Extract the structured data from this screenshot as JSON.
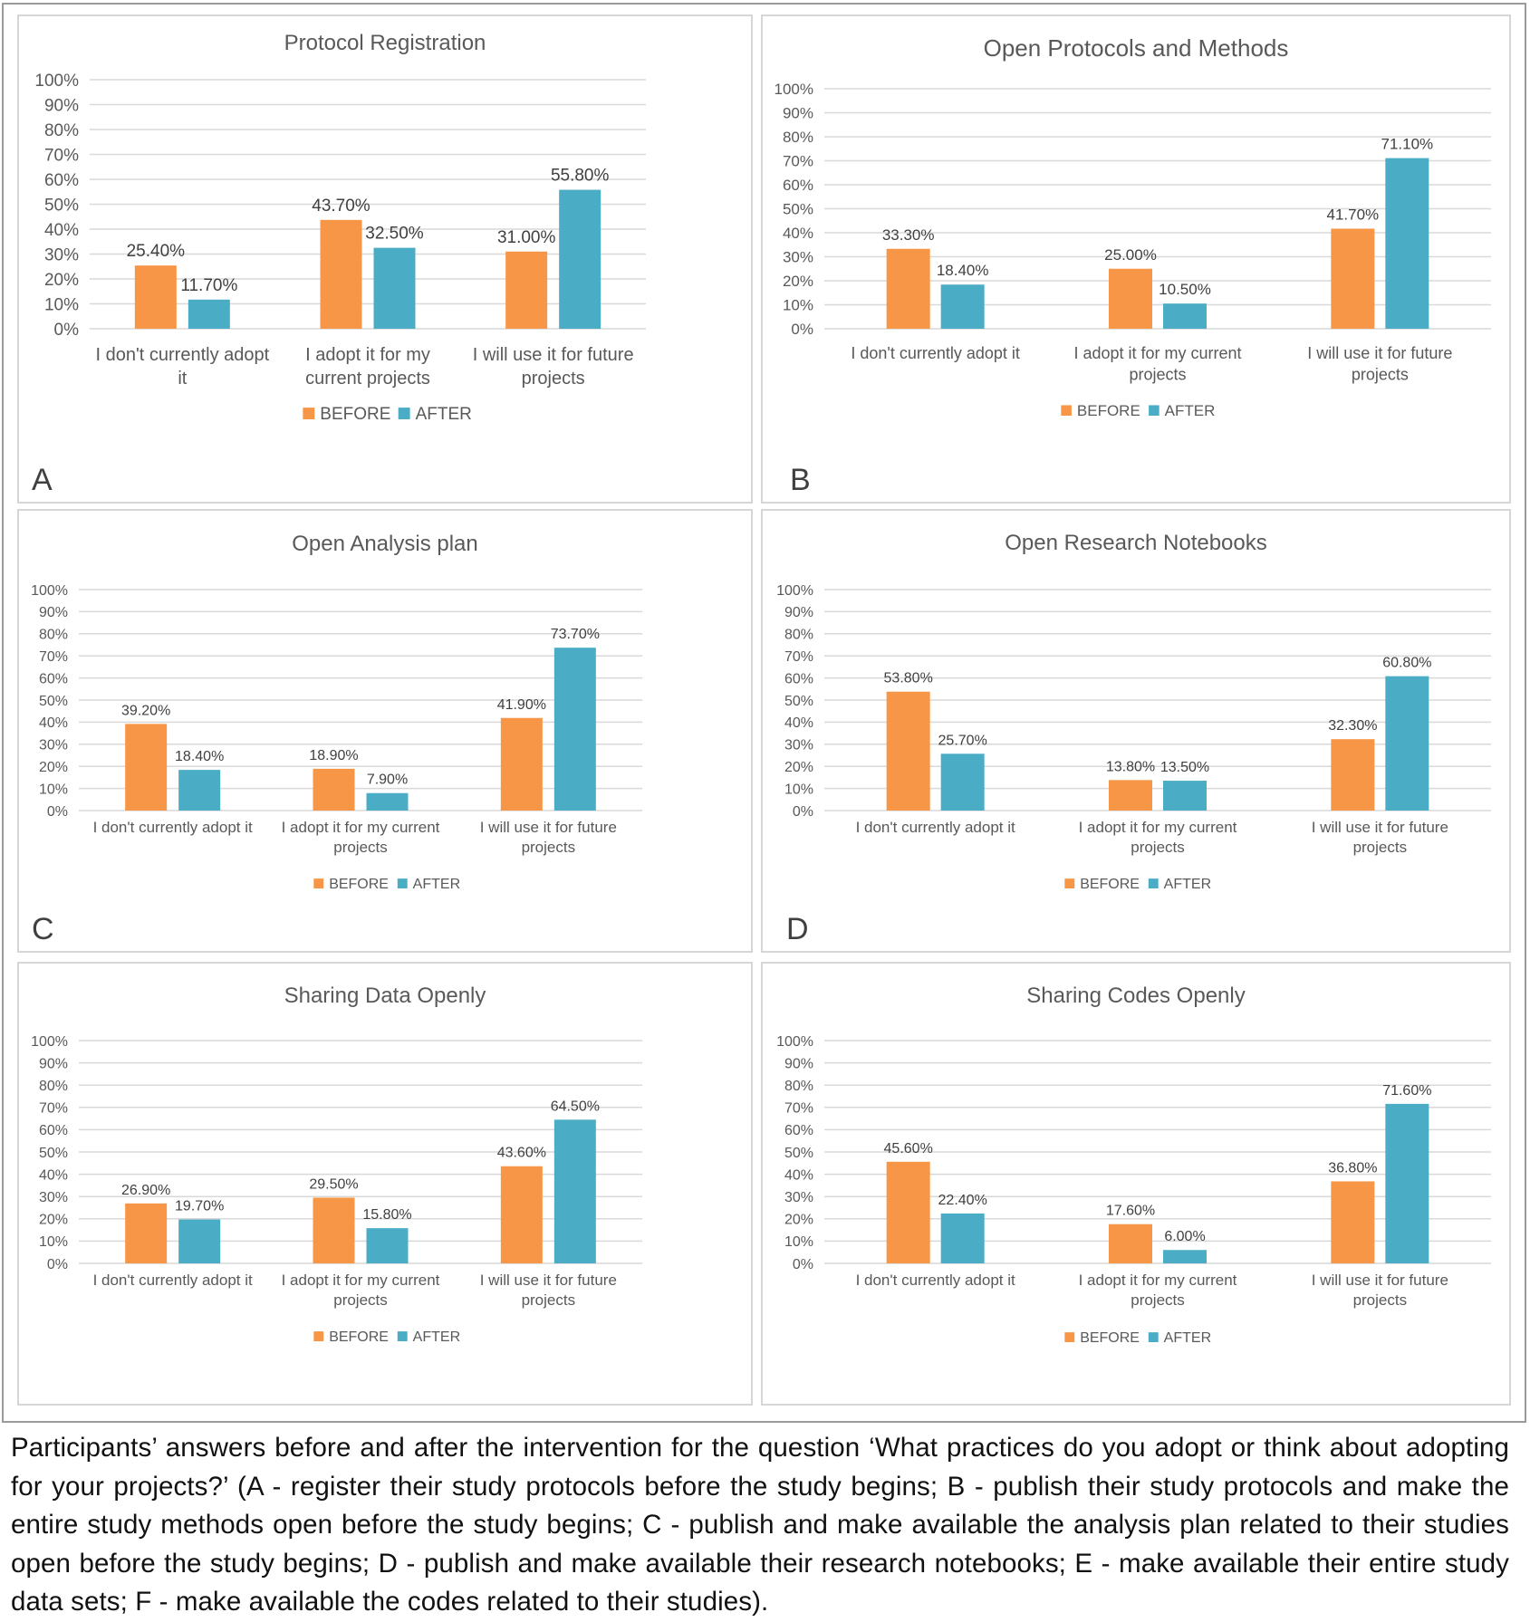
{
  "colors": {
    "before": "#F79646",
    "after": "#4BACC6",
    "text": "#595959",
    "grid": "#D9D9D9"
  },
  "legend": {
    "before_label": "BEFORE",
    "after_label": "AFTER"
  },
  "caption": "Participants’ answers before and after the intervention for the question ‘What practices do you adopt or think about adopting for your projects?’ (A - register their study protocols before the study begins; B - publish their study protocols and make the entire study methods open before the study begins; C - publish and make available the analysis plan related to their studies open before the study begins; D - publish and make available their research notebooks; E - make available their entire study data sets; F - make available the codes related to their studies).",
  "chart_data": [
    {
      "panel": "A",
      "type": "bar",
      "title": "Protocol Registration",
      "categories": [
        [
          "I don't currently adopt",
          "it"
        ],
        [
          "I adopt it for my",
          "current projects"
        ],
        [
          "I will use it for future",
          "projects"
        ]
      ],
      "series": [
        {
          "name": "BEFORE",
          "values": [
            25.4,
            43.7,
            31.0
          ],
          "labels": [
            "25.40%",
            "43.70%",
            "31.00%"
          ]
        },
        {
          "name": "AFTER",
          "values": [
            11.7,
            32.5,
            55.8
          ],
          "labels": [
            "11.70%",
            "32.50%",
            "55.80%"
          ]
        }
      ],
      "yticks": [
        "0%",
        "10%",
        "20%",
        "30%",
        "40%",
        "50%",
        "60%",
        "70%",
        "80%",
        "90%",
        "100%"
      ],
      "ylim": [
        0,
        100
      ],
      "xlabel": "",
      "ylabel": "",
      "grid": true,
      "legend": "bottom"
    },
    {
      "panel": "B",
      "type": "bar",
      "title": "Open Protocols and Methods",
      "categories": [
        [
          "I don't currently adopt it"
        ],
        [
          "I adopt it for my current",
          "projects"
        ],
        [
          "I will use it for future",
          "projects"
        ]
      ],
      "series": [
        {
          "name": "BEFORE",
          "values": [
            33.3,
            25.0,
            41.7
          ],
          "labels": [
            "33.30%",
            "25.00%",
            "41.70%"
          ]
        },
        {
          "name": "AFTER",
          "values": [
            18.4,
            10.5,
            71.1
          ],
          "labels": [
            "18.40%",
            "10.50%",
            "71.10%"
          ]
        }
      ],
      "yticks": [
        "0%",
        "10%",
        "20%",
        "30%",
        "40%",
        "50%",
        "60%",
        "70%",
        "80%",
        "90%",
        "100%"
      ],
      "ylim": [
        0,
        100
      ],
      "xlabel": "",
      "ylabel": "",
      "grid": true,
      "legend": "bottom"
    },
    {
      "panel": "C",
      "type": "bar",
      "title": "Open Analysis plan",
      "categories": [
        [
          "I don't currently adopt it"
        ],
        [
          "I adopt it for my current",
          "projects"
        ],
        [
          "I will use it for future",
          "projects"
        ]
      ],
      "series": [
        {
          "name": "BEFORE",
          "values": [
            39.2,
            18.9,
            41.9
          ],
          "labels": [
            "39.20%",
            "18.90%",
            "41.90%"
          ]
        },
        {
          "name": "AFTER",
          "values": [
            18.4,
            7.9,
            73.7
          ],
          "labels": [
            "18.40%",
            "7.90%",
            "73.70%"
          ]
        }
      ],
      "yticks": [
        "0%",
        "10%",
        "20%",
        "30%",
        "40%",
        "50%",
        "60%",
        "70%",
        "80%",
        "90%",
        "100%"
      ],
      "ylim": [
        0,
        100
      ],
      "xlabel": "",
      "ylabel": "",
      "grid": true,
      "legend": "bottom"
    },
    {
      "panel": "D",
      "type": "bar",
      "title": "Open Research Notebooks",
      "categories": [
        [
          "I don't currently adopt it"
        ],
        [
          "I adopt it for my current",
          "projects"
        ],
        [
          "I will use it for future",
          "projects"
        ]
      ],
      "series": [
        {
          "name": "BEFORE",
          "values": [
            53.8,
            13.8,
            32.3
          ],
          "labels": [
            "53.80%",
            "13.80%",
            "32.30%"
          ]
        },
        {
          "name": "AFTER",
          "values": [
            25.7,
            13.5,
            60.8
          ],
          "labels": [
            "25.70%",
            "13.50%",
            "60.80%"
          ]
        }
      ],
      "yticks": [
        "0%",
        "10%",
        "20%",
        "30%",
        "40%",
        "50%",
        "60%",
        "70%",
        "80%",
        "90%",
        "100%"
      ],
      "ylim": [
        0,
        100
      ],
      "xlabel": "",
      "ylabel": "",
      "grid": true,
      "legend": "bottom"
    },
    {
      "panel": "",
      "type": "bar",
      "title": "Sharing Data Openly",
      "categories": [
        [
          "I don't currently adopt it"
        ],
        [
          "I adopt it for my current",
          "projects"
        ],
        [
          "I will use it for future",
          "projects"
        ]
      ],
      "series": [
        {
          "name": "BEFORE",
          "values": [
            26.9,
            29.5,
            43.6
          ],
          "labels": [
            "26.90%",
            "29.50%",
            "43.60%"
          ]
        },
        {
          "name": "AFTER",
          "values": [
            19.7,
            15.8,
            64.5
          ],
          "labels": [
            "19.70%",
            "15.80%",
            "64.50%"
          ]
        }
      ],
      "yticks": [
        "0%",
        "10%",
        "20%",
        "30%",
        "40%",
        "50%",
        "60%",
        "70%",
        "80%",
        "90%",
        "100%"
      ],
      "ylim": [
        0,
        100
      ],
      "xlabel": "",
      "ylabel": "",
      "grid": true,
      "legend": "bottom"
    },
    {
      "panel": "",
      "type": "bar",
      "title": "Sharing Codes Openly",
      "categories": [
        [
          "I don't currently adopt it"
        ],
        [
          "I adopt it for my current",
          "projects"
        ],
        [
          "I will use it for future",
          "projects"
        ]
      ],
      "series": [
        {
          "name": "BEFORE",
          "values": [
            45.6,
            17.6,
            36.8
          ],
          "labels": [
            "45.60%",
            "17.60%",
            "36.80%"
          ]
        },
        {
          "name": "AFTER",
          "values": [
            22.4,
            6.0,
            71.6
          ],
          "labels": [
            "22.40%",
            "6.00%",
            "71.60%"
          ]
        }
      ],
      "yticks": [
        "0%",
        "10%",
        "20%",
        "30%",
        "40%",
        "50%",
        "60%",
        "70%",
        "80%",
        "90%",
        "100%"
      ],
      "ylim": [
        0,
        100
      ],
      "xlabel": "",
      "ylabel": "",
      "grid": true,
      "legend": "bottom"
    }
  ]
}
